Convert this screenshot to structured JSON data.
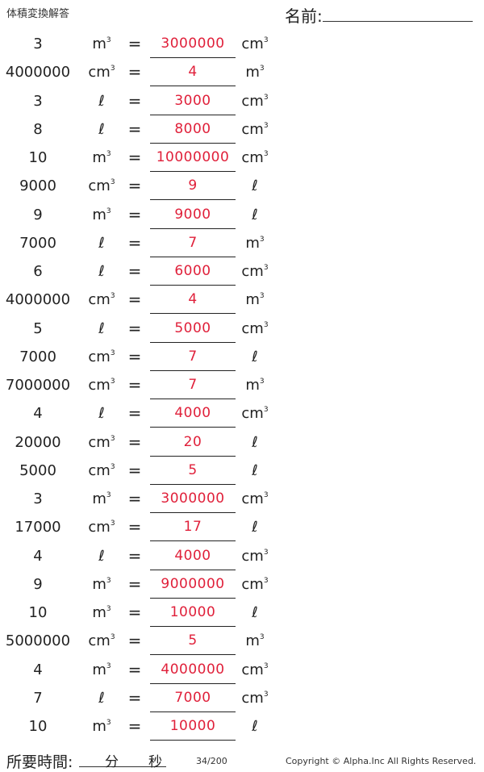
{
  "header": {
    "title": "体積変換解答",
    "name_label": "名前:"
  },
  "rows": [
    {
      "value": "3",
      "from_base": "m",
      "from_exp": "3",
      "answer": "3000000",
      "to_base": "cm",
      "to_exp": "3"
    },
    {
      "value": "4000000",
      "from_base": "cm",
      "from_exp": "3",
      "answer": "4",
      "to_base": "m",
      "to_exp": "3"
    },
    {
      "value": "3",
      "from_base": "ℓ",
      "from_exp": "",
      "answer": "3000",
      "to_base": "cm",
      "to_exp": "3"
    },
    {
      "value": "8",
      "from_base": "ℓ",
      "from_exp": "",
      "answer": "8000",
      "to_base": "cm",
      "to_exp": "3"
    },
    {
      "value": "10",
      "from_base": "m",
      "from_exp": "3",
      "answer": "10000000",
      "to_base": "cm",
      "to_exp": "3"
    },
    {
      "value": "9000",
      "from_base": "cm",
      "from_exp": "3",
      "answer": "9",
      "to_base": "ℓ",
      "to_exp": ""
    },
    {
      "value": "9",
      "from_base": "m",
      "from_exp": "3",
      "answer": "9000",
      "to_base": "ℓ",
      "to_exp": ""
    },
    {
      "value": "7000",
      "from_base": "ℓ",
      "from_exp": "",
      "answer": "7",
      "to_base": "m",
      "to_exp": "3"
    },
    {
      "value": "6",
      "from_base": "ℓ",
      "from_exp": "",
      "answer": "6000",
      "to_base": "cm",
      "to_exp": "3"
    },
    {
      "value": "4000000",
      "from_base": "cm",
      "from_exp": "3",
      "answer": "4",
      "to_base": "m",
      "to_exp": "3"
    },
    {
      "value": "5",
      "from_base": "ℓ",
      "from_exp": "",
      "answer": "5000",
      "to_base": "cm",
      "to_exp": "3"
    },
    {
      "value": "7000",
      "from_base": "cm",
      "from_exp": "3",
      "answer": "7",
      "to_base": "ℓ",
      "to_exp": ""
    },
    {
      "value": "7000000",
      "from_base": "cm",
      "from_exp": "3",
      "answer": "7",
      "to_base": "m",
      "to_exp": "3"
    },
    {
      "value": "4",
      "from_base": "ℓ",
      "from_exp": "",
      "answer": "4000",
      "to_base": "cm",
      "to_exp": "3"
    },
    {
      "value": "20000",
      "from_base": "cm",
      "from_exp": "3",
      "answer": "20",
      "to_base": "ℓ",
      "to_exp": ""
    },
    {
      "value": "5000",
      "from_base": "cm",
      "from_exp": "3",
      "answer": "5",
      "to_base": "ℓ",
      "to_exp": ""
    },
    {
      "value": "3",
      "from_base": "m",
      "from_exp": "3",
      "answer": "3000000",
      "to_base": "cm",
      "to_exp": "3"
    },
    {
      "value": "17000",
      "from_base": "cm",
      "from_exp": "3",
      "answer": "17",
      "to_base": "ℓ",
      "to_exp": ""
    },
    {
      "value": "4",
      "from_base": "ℓ",
      "from_exp": "",
      "answer": "4000",
      "to_base": "cm",
      "to_exp": "3"
    },
    {
      "value": "9",
      "from_base": "m",
      "from_exp": "3",
      "answer": "9000000",
      "to_base": "cm",
      "to_exp": "3"
    },
    {
      "value": "10",
      "from_base": "m",
      "from_exp": "3",
      "answer": "10000",
      "to_base": "ℓ",
      "to_exp": ""
    },
    {
      "value": "5000000",
      "from_base": "cm",
      "from_exp": "3",
      "answer": "5",
      "to_base": "m",
      "to_exp": "3"
    },
    {
      "value": "4",
      "from_base": "m",
      "from_exp": "3",
      "answer": "4000000",
      "to_base": "cm",
      "to_exp": "3"
    },
    {
      "value": "7",
      "from_base": "ℓ",
      "from_exp": "",
      "answer": "7000",
      "to_base": "cm",
      "to_exp": "3"
    },
    {
      "value": "10",
      "from_base": "m",
      "from_exp": "3",
      "answer": "10000",
      "to_base": "ℓ",
      "to_exp": ""
    }
  ],
  "equals_sign": "=",
  "footer": {
    "time_label": "所要時間:",
    "minutes_label": "分",
    "seconds_label": "秒",
    "page": "34/200",
    "copyright": "Copyright © Alpha.Inc All Rights Reserved."
  },
  "colors": {
    "answer": "#e0203a",
    "text": "#222222"
  }
}
